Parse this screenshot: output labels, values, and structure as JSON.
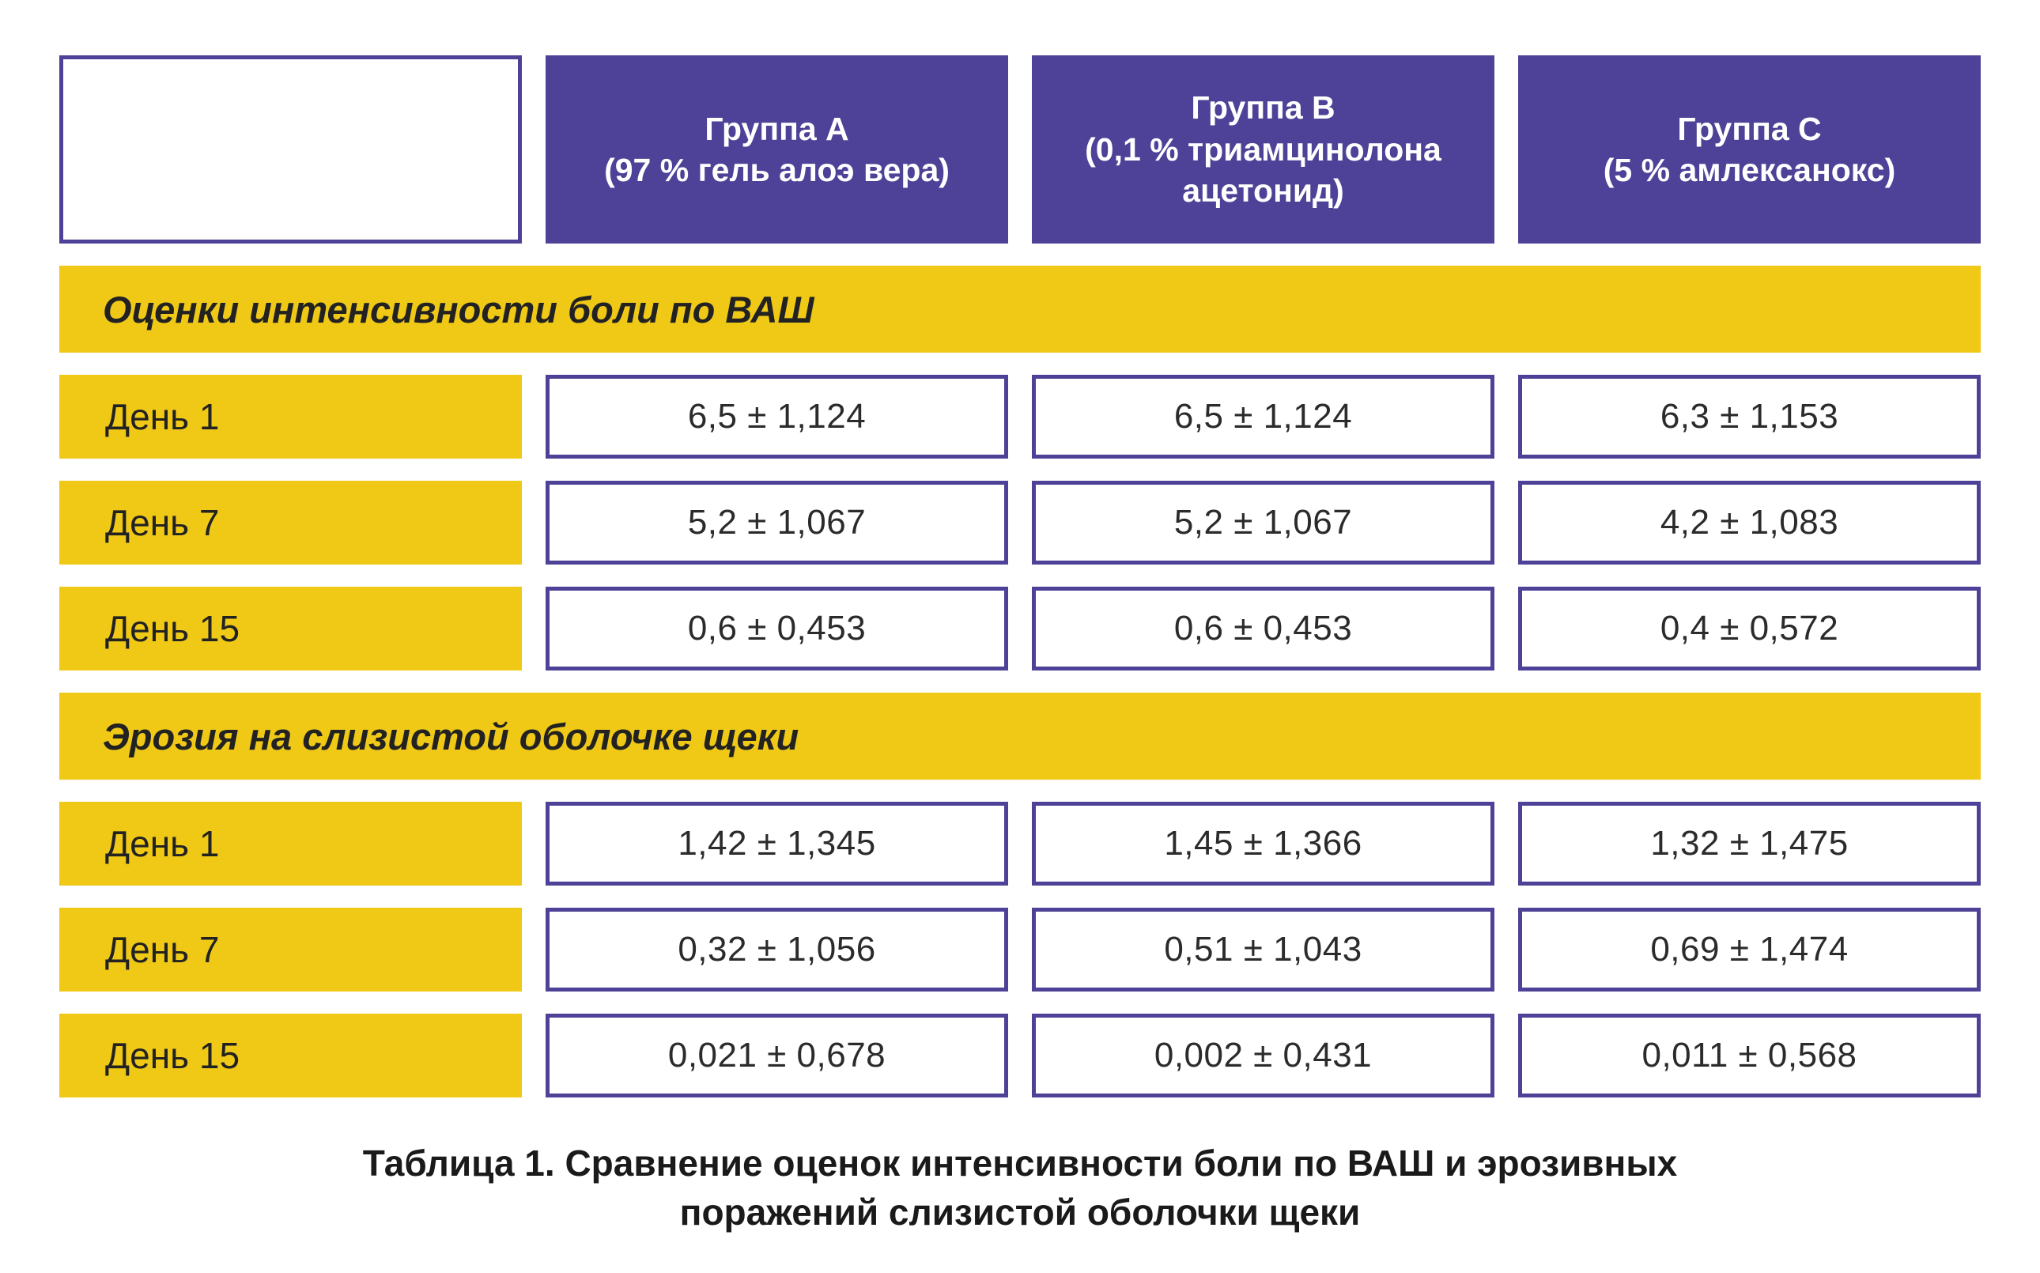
{
  "palette": {
    "purple": "#4d4297",
    "yellow": "#f0c917",
    "white": "#ffffff",
    "text_dark": "#222222"
  },
  "header": {
    "group_a": "Группа A\n(97 % гель алоэ вера)",
    "group_b": "Группа B\n(0,1 % триамцинолона\nацетонид)",
    "group_c": "Группа C\n(5 % амлексанокс)"
  },
  "caption": "Таблица 1. Сравнение оценок интенсивности боли по ВАШ и эрозивных\nпоражений слизистой оболочки щеки",
  "chart_data": {
    "type": "table",
    "title": "Таблица 1. Сравнение оценок интенсивности боли по ВАШ и эрозивных поражений слизистой оболочки щеки",
    "groups": [
      "Группа A (97 % гель алоэ вера)",
      "Группа B (0,1 % триамцинолона ацетонид)",
      "Группа C (5 % амлексанокс)"
    ],
    "sections": [
      {
        "name": "Оценки интенсивности боли по ВАШ",
        "rows": [
          {
            "label": "День 1",
            "display": [
              "6,5 ± 1,124",
              "6,5 ± 1,124",
              "6,3 ± 1,153"
            ],
            "mean": [
              6.5,
              6.5,
              6.3
            ],
            "sd": [
              1.124,
              1.124,
              1.153
            ]
          },
          {
            "label": "День 7",
            "display": [
              "5,2 ± 1,067",
              "5,2 ± 1,067",
              "4,2 ± 1,083"
            ],
            "mean": [
              5.2,
              5.2,
              4.2
            ],
            "sd": [
              1.067,
              1.067,
              1.083
            ]
          },
          {
            "label": "День 15",
            "display": [
              "0,6 ± 0,453",
              "0,6 ± 0,453",
              "0,4 ± 0,572"
            ],
            "mean": [
              0.6,
              0.6,
              0.4
            ],
            "sd": [
              0.453,
              0.453,
              0.572
            ]
          }
        ]
      },
      {
        "name": "Эрозия на слизистой оболочке щеки",
        "rows": [
          {
            "label": "День 1",
            "display": [
              "1,42 ± 1,345",
              "1,45 ± 1,366",
              "1,32 ± 1,475"
            ],
            "mean": [
              1.42,
              1.45,
              1.32
            ],
            "sd": [
              1.345,
              1.366,
              1.475
            ]
          },
          {
            "label": "День 7",
            "display": [
              "0,32 ± 1,056",
              "0,51 ± 1,043",
              "0,69 ± 1,474"
            ],
            "mean": [
              0.32,
              0.51,
              0.69
            ],
            "sd": [
              1.056,
              1.043,
              1.474
            ]
          },
          {
            "label": "День 15",
            "display": [
              "0,021 ± 0,678",
              "0,002 ± 0,431",
              "0,011 ± 0,568"
            ],
            "mean": [
              0.021,
              0.002,
              0.011
            ],
            "sd": [
              0.678,
              0.431,
              0.568
            ]
          }
        ]
      }
    ]
  }
}
